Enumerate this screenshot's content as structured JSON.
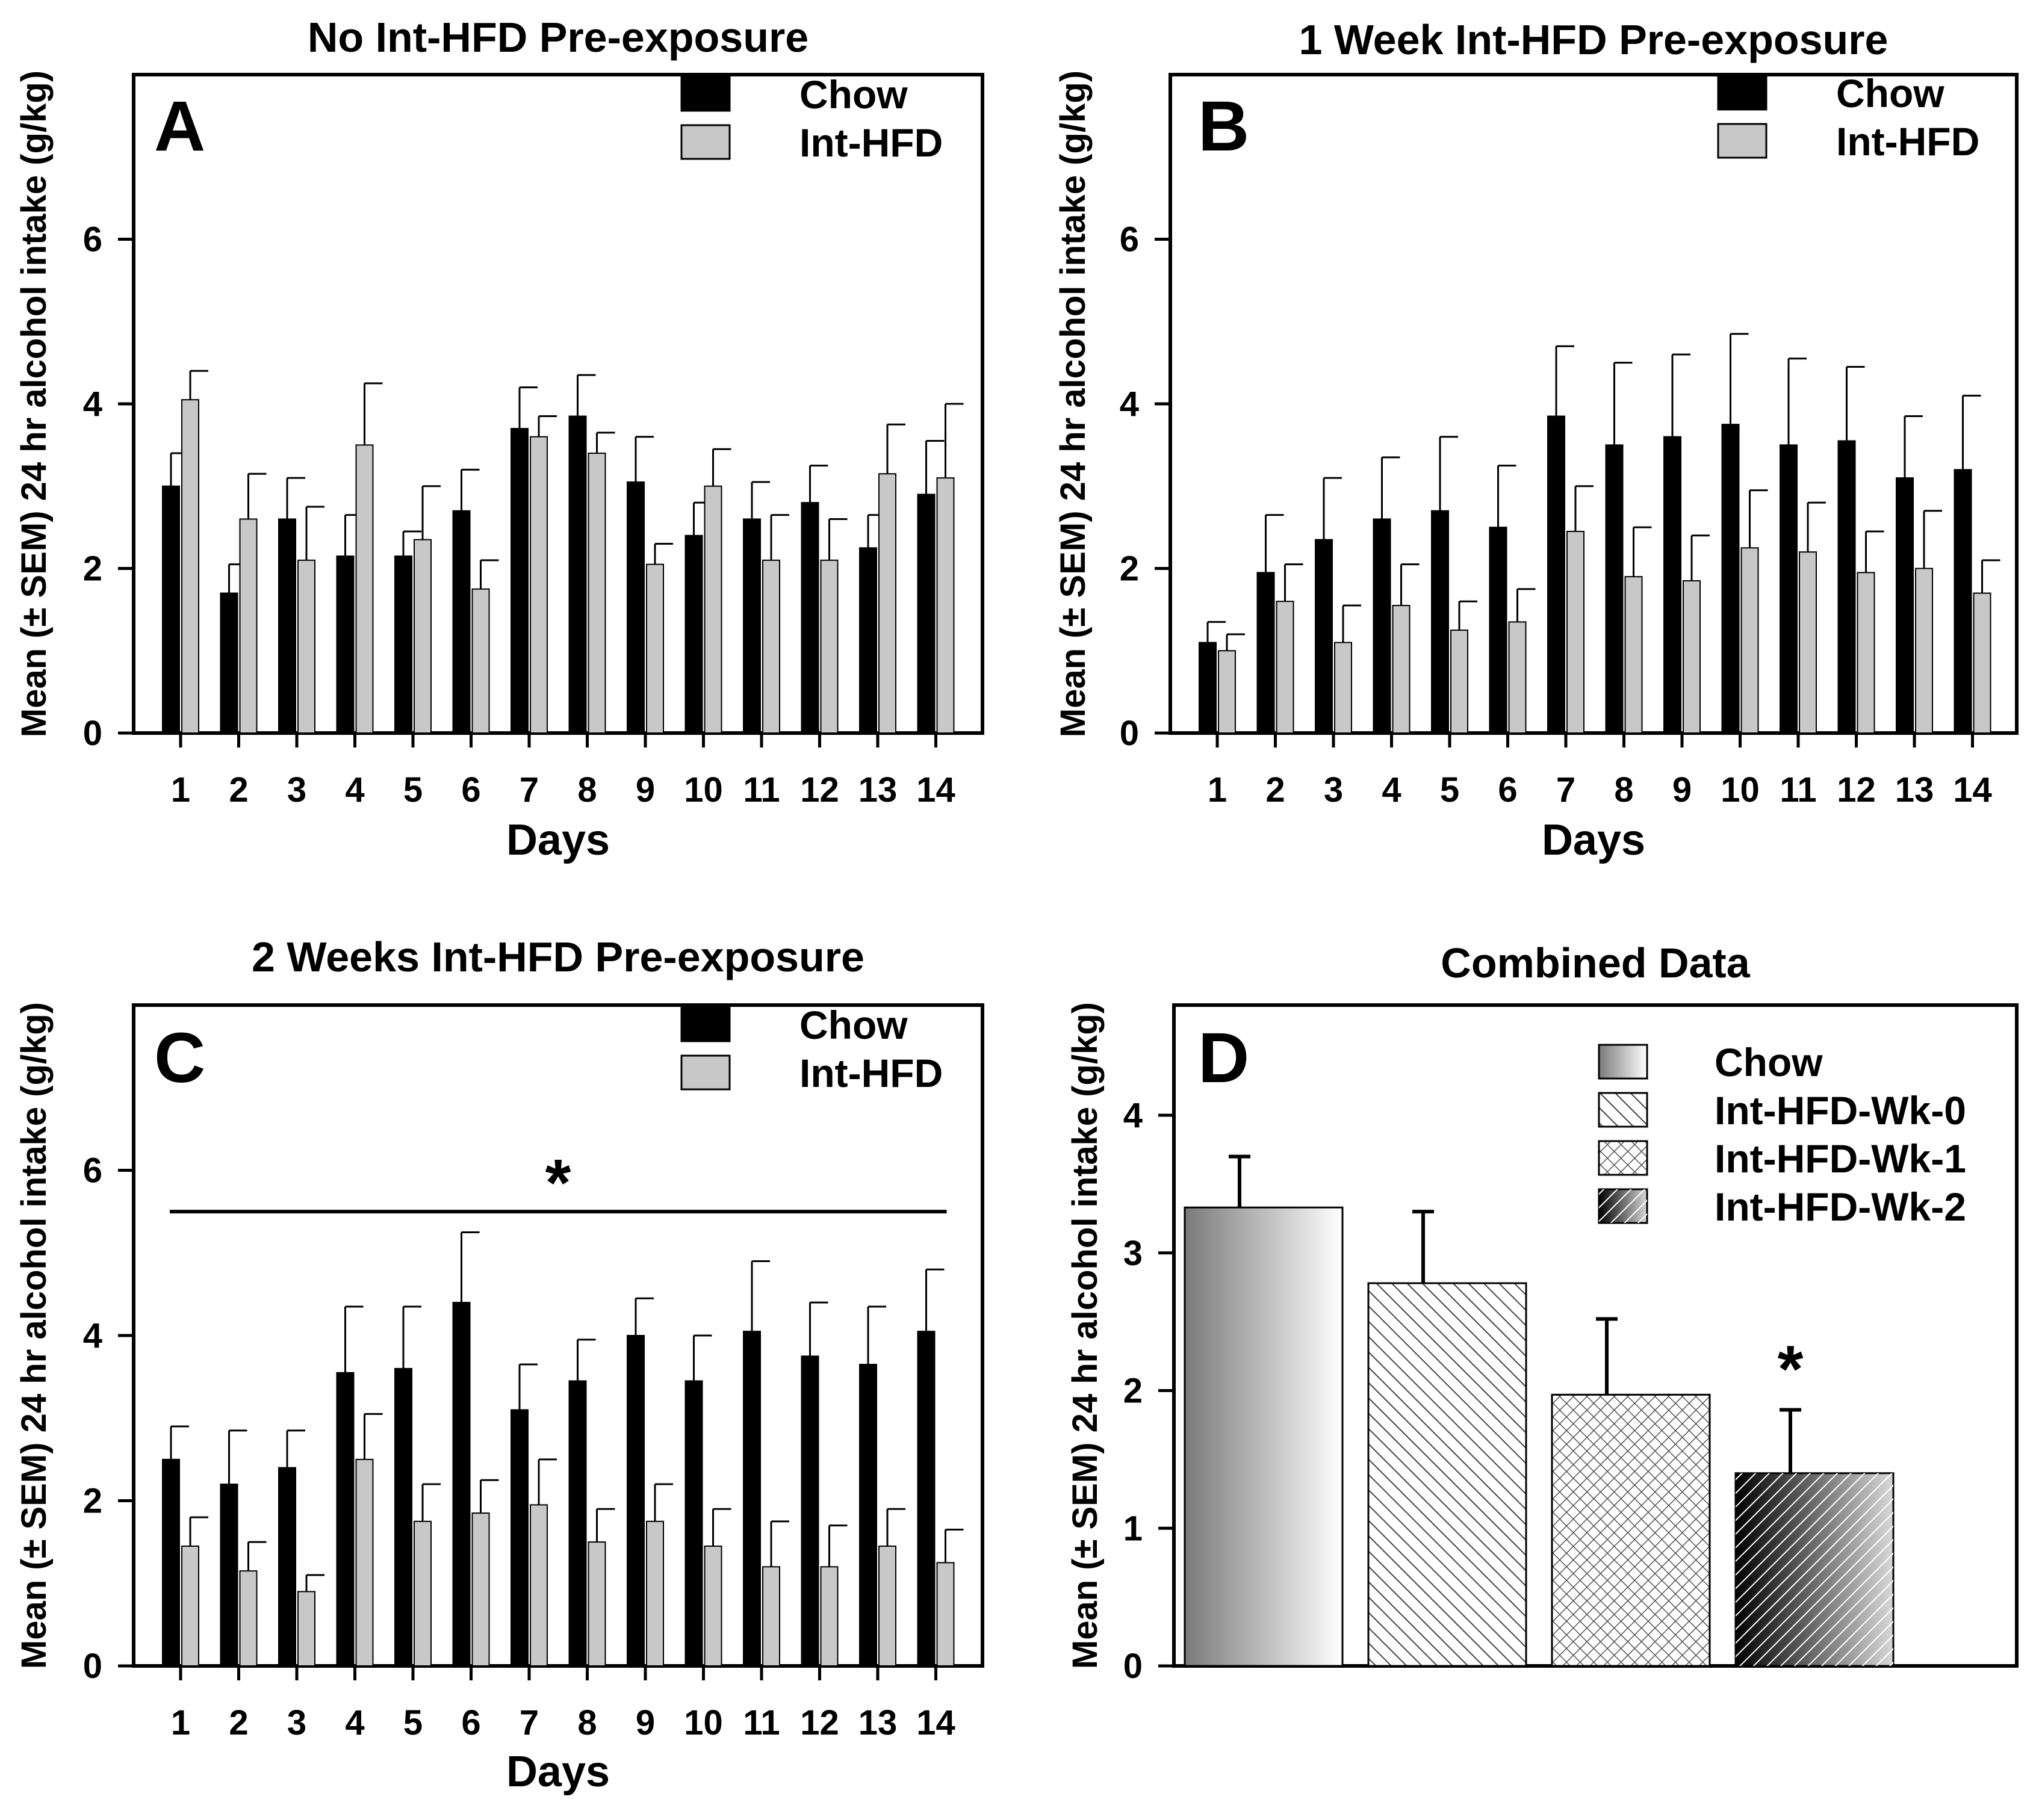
{
  "chart_data": [
    {
      "panel": "A",
      "type": "bar",
      "title": "No Int-HFD Pre-exposure",
      "xlabel": "Days",
      "ylabel": "Mean (± SEM) 24 hr alcohol intake (g/kg)",
      "ylim": [
        0,
        8
      ],
      "yticks": [
        0,
        2,
        4,
        6
      ],
      "legend_position": "top-right",
      "categories": [
        "1",
        "2",
        "3",
        "4",
        "5",
        "6",
        "7",
        "8",
        "9",
        "10",
        "11",
        "12",
        "13",
        "14"
      ],
      "series": [
        {
          "name": "Chow",
          "color": "#000000",
          "values": [
            3.0,
            1.7,
            2.6,
            2.15,
            2.15,
            2.7,
            3.7,
            3.85,
            3.05,
            2.4,
            2.6,
            2.8,
            2.25,
            2.9
          ],
          "errors": [
            0.4,
            0.35,
            0.5,
            0.5,
            0.3,
            0.5,
            0.5,
            0.5,
            0.55,
            0.4,
            0.45,
            0.45,
            0.4,
            0.65
          ]
        },
        {
          "name": "Int-HFD",
          "color": "#c8c8c8",
          "values": [
            4.05,
            2.6,
            2.1,
            3.5,
            2.35,
            1.75,
            3.6,
            3.4,
            2.05,
            3.0,
            2.1,
            2.1,
            3.15,
            3.1
          ],
          "errors": [
            0.35,
            0.55,
            0.65,
            0.75,
            0.65,
            0.35,
            0.25,
            0.25,
            0.25,
            0.45,
            0.55,
            0.5,
            0.6,
            0.9
          ]
        }
      ],
      "significance": null
    },
    {
      "panel": "B",
      "type": "bar",
      "title": "1 Week Int-HFD Pre-exposure",
      "xlabel": "Days",
      "ylabel": "Mean (± SEM) 24 hr alcohol intake (g/kg)",
      "ylim": [
        0,
        8
      ],
      "yticks": [
        0,
        2,
        4,
        6
      ],
      "legend_position": "top-right",
      "categories": [
        "1",
        "2",
        "3",
        "4",
        "5",
        "6",
        "7",
        "8",
        "9",
        "10",
        "11",
        "12",
        "13",
        "14"
      ],
      "series": [
        {
          "name": "Chow",
          "color": "#000000",
          "values": [
            1.1,
            1.95,
            2.35,
            2.6,
            2.7,
            2.5,
            3.85,
            3.5,
            3.6,
            3.75,
            3.5,
            3.55,
            3.1,
            3.2
          ],
          "errors": [
            0.25,
            0.7,
            0.75,
            0.75,
            0.9,
            0.75,
            0.85,
            1.0,
            1.0,
            1.1,
            1.05,
            0.9,
            0.75,
            0.9
          ]
        },
        {
          "name": "Int-HFD",
          "color": "#c8c8c8",
          "values": [
            1.0,
            1.6,
            1.1,
            1.55,
            1.25,
            1.35,
            2.45,
            1.9,
            1.85,
            2.25,
            2.2,
            1.95,
            2.0,
            1.7
          ],
          "errors": [
            0.2,
            0.45,
            0.45,
            0.5,
            0.35,
            0.4,
            0.55,
            0.6,
            0.55,
            0.7,
            0.6,
            0.5,
            0.7,
            0.4
          ]
        }
      ],
      "significance": null
    },
    {
      "panel": "C",
      "type": "bar",
      "title": "2 Weeks Int-HFD Pre-exposure",
      "xlabel": "Days",
      "ylabel": "Mean (± SEM) 24 hr alcohol intake (g/kg)",
      "ylim": [
        0,
        8
      ],
      "yticks": [
        0,
        2,
        4,
        6
      ],
      "legend_position": "top-right",
      "categories": [
        "1",
        "2",
        "3",
        "4",
        "5",
        "6",
        "7",
        "8",
        "9",
        "10",
        "11",
        "12",
        "13",
        "14"
      ],
      "series": [
        {
          "name": "Chow",
          "color": "#000000",
          "values": [
            2.5,
            2.2,
            2.4,
            3.55,
            3.6,
            4.4,
            3.1,
            3.45,
            4.0,
            3.45,
            4.05,
            3.75,
            3.65,
            4.05
          ],
          "errors": [
            0.4,
            0.65,
            0.45,
            0.8,
            0.75,
            0.85,
            0.55,
            0.5,
            0.45,
            0.55,
            0.85,
            0.65,
            0.7,
            0.75
          ]
        },
        {
          "name": "Int-HFD",
          "color": "#c8c8c8",
          "values": [
            1.45,
            1.15,
            0.9,
            2.5,
            1.75,
            1.85,
            1.95,
            1.5,
            1.75,
            1.45,
            1.2,
            1.2,
            1.45,
            1.25
          ],
          "errors": [
            0.35,
            0.35,
            0.2,
            0.55,
            0.45,
            0.4,
            0.55,
            0.4,
            0.45,
            0.45,
            0.55,
            0.5,
            0.45,
            0.4
          ]
        }
      ],
      "significance": {
        "label": "*",
        "line_y": 5.5,
        "span": [
          "1",
          "14"
        ]
      }
    },
    {
      "panel": "D",
      "type": "bar",
      "title": "Combined Data",
      "xlabel": "",
      "ylabel": "Mean (± SEM) 24 hr alcohol intake (g/kg)",
      "ylim": [
        0,
        4.8
      ],
      "yticks": [
        0,
        1,
        2,
        3,
        4
      ],
      "legend_position": "top-right",
      "categories": [
        "Chow",
        "Int-HFD-Wk-0",
        "Int-HFD-Wk-1",
        "Int-HFD-Wk-2"
      ],
      "values": [
        3.33,
        2.78,
        1.97,
        1.4
      ],
      "errors": [
        0.37,
        0.52,
        0.55,
        0.46
      ],
      "fills": [
        "gradient-gray",
        "diagonal-hatch",
        "crosshatch",
        "dark-diagonal-hatch"
      ],
      "significance": [
        {
          "category": "Int-HFD-Wk-2",
          "label": "*"
        }
      ]
    }
  ]
}
